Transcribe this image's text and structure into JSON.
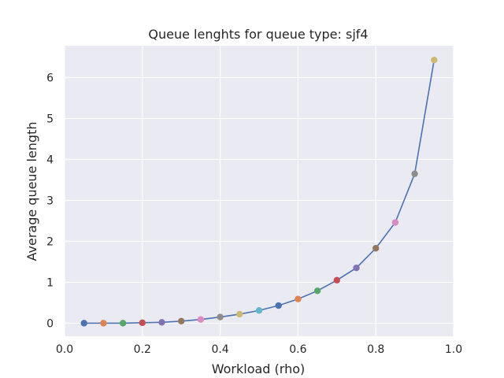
{
  "chart_data": {
    "type": "scatter",
    "title": "Queue lenghts for queue type: sjf4",
    "xlabel": "Workload (rho)",
    "ylabel": "Average queue length",
    "xlim": [
      0.0,
      1.0
    ],
    "ylim": [
      -0.32,
      6.78
    ],
    "xticks": [
      0.0,
      0.2,
      0.4,
      0.6,
      0.8,
      1.0
    ],
    "xtick_labels": [
      "0.0",
      "0.2",
      "0.4",
      "0.6",
      "0.8",
      "1.0"
    ],
    "yticks": [
      0,
      1,
      2,
      3,
      4,
      5,
      6
    ],
    "ytick_labels": [
      "0",
      "1",
      "2",
      "3",
      "4",
      "5",
      "6"
    ],
    "grid": true,
    "background": "#eaeaf2",
    "grid_color": "#ffffff",
    "line_color": "#4c72b0",
    "x": [
      0.05,
      0.1,
      0.15,
      0.2,
      0.25,
      0.3,
      0.35,
      0.4,
      0.45,
      0.5,
      0.55,
      0.6,
      0.65,
      0.7,
      0.75,
      0.8,
      0.85,
      0.9,
      0.95
    ],
    "y": [
      0.0,
      0.0,
      0.0,
      0.01,
      0.02,
      0.05,
      0.09,
      0.15,
      0.22,
      0.31,
      0.43,
      0.59,
      0.79,
      1.05,
      1.35,
      1.83,
      2.46,
      3.65,
      6.43
    ],
    "point_colors": [
      "#4c72b0",
      "#dd8452",
      "#55a868",
      "#c44e52",
      "#8172b3",
      "#937860",
      "#da8bc3",
      "#8c8c8c",
      "#ccb974",
      "#64b5cd",
      "#4c72b0",
      "#dd8452",
      "#55a868",
      "#c44e52",
      "#8172b3",
      "#937860",
      "#da8bc3",
      "#8c8c8c",
      "#ccb974"
    ]
  }
}
